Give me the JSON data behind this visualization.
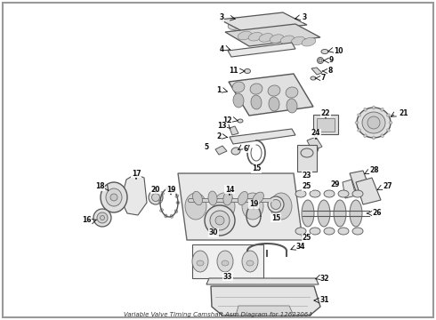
{
  "bg_color": "#ffffff",
  "border_color": "#aaaaaa",
  "part_fill": "#e8e8e8",
  "part_edge": "#555555",
  "label_color": "#111111",
  "fig_width": 4.9,
  "fig_height": 3.6,
  "dpi": 100,
  "caption": "Variable Valve Timing Camshaft Asm Diagram for 12623064"
}
